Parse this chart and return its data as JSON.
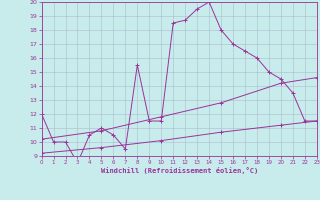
{
  "xlabel": "Windchill (Refroidissement éolien,°C)",
  "xlim": [
    0,
    23
  ],
  "ylim": [
    9,
    20
  ],
  "yticks": [
    9,
    10,
    11,
    12,
    13,
    14,
    15,
    16,
    17,
    18,
    19,
    20
  ],
  "xticks": [
    0,
    1,
    2,
    3,
    4,
    5,
    6,
    7,
    8,
    9,
    10,
    11,
    12,
    13,
    14,
    15,
    16,
    17,
    18,
    19,
    20,
    21,
    22,
    23
  ],
  "bg_color": "#c8ecec",
  "line_color": "#993399",
  "grid_color": "#aabbcc",
  "line1_x": [
    0,
    1,
    2,
    3,
    4,
    5,
    6,
    7,
    8,
    9,
    10,
    11,
    12,
    13,
    14,
    15,
    16,
    17,
    18,
    19,
    20,
    21,
    22,
    23
  ],
  "line1_y": [
    12.0,
    10.0,
    10.0,
    8.5,
    10.5,
    11.0,
    10.5,
    9.5,
    15.5,
    11.5,
    11.5,
    18.5,
    18.7,
    19.5,
    20.0,
    18.0,
    17.0,
    16.5,
    16.0,
    15.0,
    14.5,
    13.5,
    11.5,
    11.5
  ],
  "line2_x": [
    0,
    5,
    10,
    15,
    20,
    23
  ],
  "line2_y": [
    10.2,
    10.8,
    11.8,
    12.8,
    14.2,
    14.6
  ],
  "line3_x": [
    0,
    5,
    10,
    15,
    20,
    23
  ],
  "line3_y": [
    9.2,
    9.6,
    10.1,
    10.7,
    11.2,
    11.5
  ]
}
